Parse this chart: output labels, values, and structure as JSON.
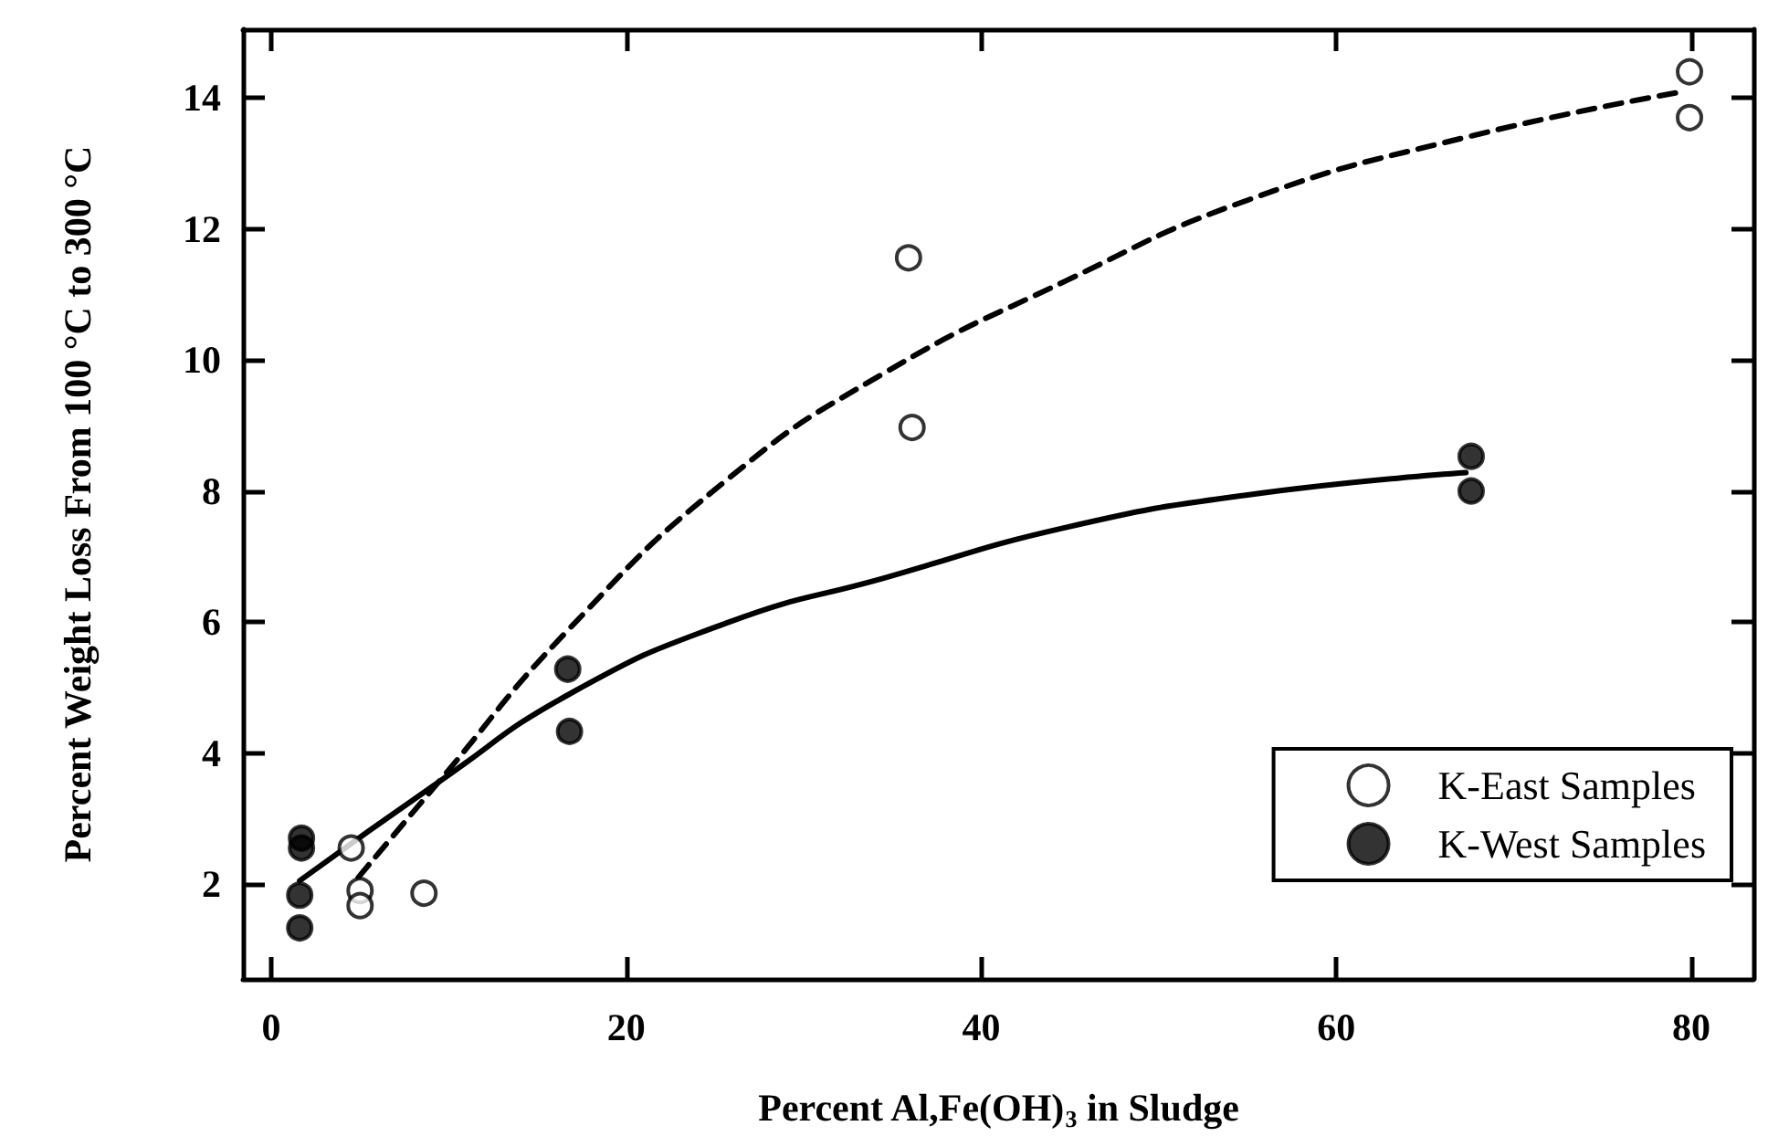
{
  "chart_data": {
    "type": "scatter",
    "xlabel": "Percent Al,Fe(OH)$_{3}$ in Sludge",
    "ylabel": "Percent Weight Loss From 100 °C to 300 °C",
    "xlim": [
      -1.6,
      83.5
    ],
    "ylim": [
      0.55,
      15.05
    ],
    "xticks": [
      0,
      20,
      40,
      60,
      80
    ],
    "yticks": [
      2,
      4,
      6,
      8,
      10,
      12,
      14
    ],
    "grid": false,
    "legend": "bottom right",
    "marker": "circle",
    "series": [
      {
        "name": "K-East Samples",
        "color": "#ffffff",
        "x": [
          4.5,
          5.0,
          5.0,
          8.6,
          35.9,
          36.1,
          79.9,
          79.9
        ],
        "values": [
          2.55,
          1.9,
          1.67,
          1.86,
          11.56,
          8.97,
          14.4,
          13.7
        ]
      },
      {
        "name": "K-West Samples",
        "color": "#000000",
        "x": [
          1.7,
          1.7,
          1.6,
          1.6,
          16.7,
          16.8,
          67.6,
          67.6
        ],
        "values": [
          2.7,
          2.55,
          1.83,
          1.33,
          5.28,
          4.33,
          8.53,
          8.0
        ]
      },
      {
        "type": "line",
        "color": "#000000",
        "line_style": "dashed",
        "marker": "none",
        "x": [
          4.9,
          9.4,
          16.8,
          25.8,
          34.4,
          44.7,
          55,
          67.3,
          79.6
        ],
        "values": [
          2.1,
          3.55,
          5.9,
          8.2,
          9.78,
          11.2,
          12.44,
          13.4,
          14.1
        ]
      },
      {
        "type": "line",
        "color": "#000000",
        "line_style": "solid",
        "marker": "none",
        "x": [
          1.6,
          9.4,
          16.8,
          25.8,
          34.5,
          44.7,
          55,
          67.3
        ],
        "values": [
          2.05,
          3.55,
          4.9,
          6.0,
          6.67,
          7.44,
          7.94,
          8.28
        ]
      }
    ]
  }
}
